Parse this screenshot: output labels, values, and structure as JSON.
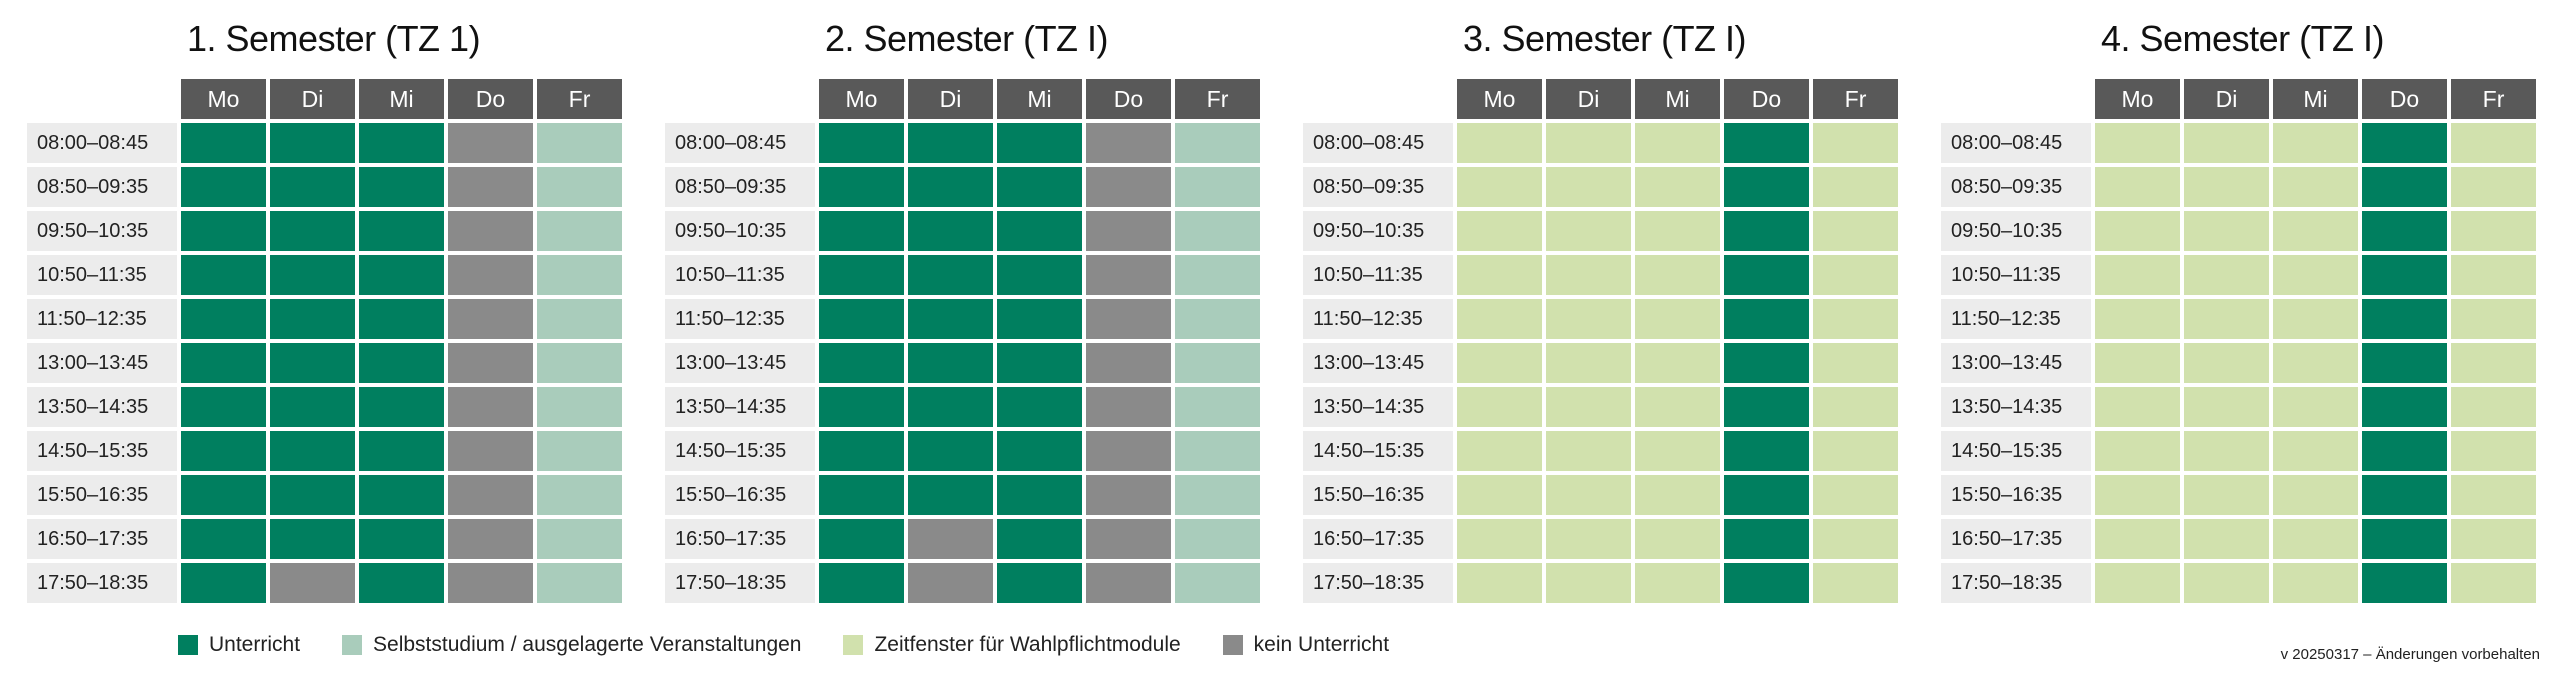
{
  "colors": {
    "U": "#007f5f",
    "S": "#a9ccbb",
    "W": "#d1e1ad",
    "K": "#8a8a8a"
  },
  "days": [
    "Mo",
    "Di",
    "Mi",
    "Do",
    "Fr"
  ],
  "times": [
    "08:00–08:45",
    "08:50–09:35",
    "09:50–10:35",
    "10:50–11:35",
    "11:50–12:35",
    "13:00–13:45",
    "13:50–14:35",
    "14:50–15:35",
    "15:50–16:35",
    "16:50–17:35",
    "17:50–18:35"
  ],
  "schedules": [
    {
      "title": "1. Semester (TZ 1)",
      "grid": [
        [
          "U",
          "U",
          "U",
          "K",
          "S"
        ],
        [
          "U",
          "U",
          "U",
          "K",
          "S"
        ],
        [
          "U",
          "U",
          "U",
          "K",
          "S"
        ],
        [
          "U",
          "U",
          "U",
          "K",
          "S"
        ],
        [
          "U",
          "U",
          "U",
          "K",
          "S"
        ],
        [
          "U",
          "U",
          "U",
          "K",
          "S"
        ],
        [
          "U",
          "U",
          "U",
          "K",
          "S"
        ],
        [
          "U",
          "U",
          "U",
          "K",
          "S"
        ],
        [
          "U",
          "U",
          "U",
          "K",
          "S"
        ],
        [
          "U",
          "U",
          "U",
          "K",
          "S"
        ],
        [
          "U",
          "K",
          "U",
          "K",
          "S"
        ]
      ]
    },
    {
      "title": "2. Semester (TZ I)",
      "grid": [
        [
          "U",
          "U",
          "U",
          "K",
          "S"
        ],
        [
          "U",
          "U",
          "U",
          "K",
          "S"
        ],
        [
          "U",
          "U",
          "U",
          "K",
          "S"
        ],
        [
          "U",
          "U",
          "U",
          "K",
          "S"
        ],
        [
          "U",
          "U",
          "U",
          "K",
          "S"
        ],
        [
          "U",
          "U",
          "U",
          "K",
          "S"
        ],
        [
          "U",
          "U",
          "U",
          "K",
          "S"
        ],
        [
          "U",
          "U",
          "U",
          "K",
          "S"
        ],
        [
          "U",
          "U",
          "U",
          "K",
          "S"
        ],
        [
          "U",
          "K",
          "U",
          "K",
          "S"
        ],
        [
          "U",
          "K",
          "U",
          "K",
          "S"
        ]
      ]
    },
    {
      "title": "3. Semester (TZ I)",
      "grid": [
        [
          "W",
          "W",
          "W",
          "U",
          "W"
        ],
        [
          "W",
          "W",
          "W",
          "U",
          "W"
        ],
        [
          "W",
          "W",
          "W",
          "U",
          "W"
        ],
        [
          "W",
          "W",
          "W",
          "U",
          "W"
        ],
        [
          "W",
          "W",
          "W",
          "U",
          "W"
        ],
        [
          "W",
          "W",
          "W",
          "U",
          "W"
        ],
        [
          "W",
          "W",
          "W",
          "U",
          "W"
        ],
        [
          "W",
          "W",
          "W",
          "U",
          "W"
        ],
        [
          "W",
          "W",
          "W",
          "U",
          "W"
        ],
        [
          "W",
          "W",
          "W",
          "U",
          "W"
        ],
        [
          "W",
          "W",
          "W",
          "U",
          "W"
        ]
      ]
    },
    {
      "title": "4. Semester (TZ I)",
      "grid": [
        [
          "W",
          "W",
          "W",
          "U",
          "W"
        ],
        [
          "W",
          "W",
          "W",
          "U",
          "W"
        ],
        [
          "W",
          "W",
          "W",
          "U",
          "W"
        ],
        [
          "W",
          "W",
          "W",
          "U",
          "W"
        ],
        [
          "W",
          "W",
          "W",
          "U",
          "W"
        ],
        [
          "W",
          "W",
          "W",
          "U",
          "W"
        ],
        [
          "W",
          "W",
          "W",
          "U",
          "W"
        ],
        [
          "W",
          "W",
          "W",
          "U",
          "W"
        ],
        [
          "W",
          "W",
          "W",
          "U",
          "W"
        ],
        [
          "W",
          "W",
          "W",
          "U",
          "W"
        ],
        [
          "W",
          "W",
          "W",
          "U",
          "W"
        ]
      ]
    }
  ],
  "legend": [
    {
      "key": "U",
      "label": "Unterricht"
    },
    {
      "key": "S",
      "label": "Selbststudium / ausgelagerte Veranstaltungen"
    },
    {
      "key": "W",
      "label": "Zeitfenster für Wahlpflichtmodule"
    },
    {
      "key": "K",
      "label": "kein Unterricht"
    }
  ],
  "version": "v 20250317 – Änderungen vorbehalten"
}
